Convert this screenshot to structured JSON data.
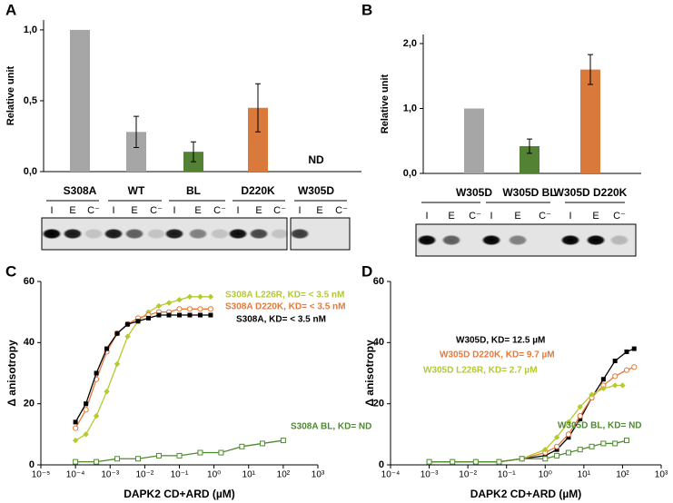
{
  "chart_data": [
    {
      "type": "bar",
      "panel": "A",
      "y_label": "Relative unit",
      "categories": [
        "S308A",
        "WT",
        "BL",
        "D220K",
        "W305D"
      ],
      "values": [
        1.0,
        0.28,
        0.14,
        0.45,
        null
      ],
      "errors": [
        0,
        0.11,
        0.07,
        0.17,
        null
      ],
      "colors": [
        "#a6a6a6",
        "#a6a6a6",
        "#548235",
        "#d9793b",
        "#a6a6a6"
      ],
      "annotation": "ND",
      "ylim": [
        0,
        1.07
      ],
      "yticks": [
        {
          "value": 0,
          "label": "0,0"
        },
        {
          "value": 0.5,
          "label": "0,5"
        },
        {
          "value": 1,
          "label": "1,0"
        }
      ]
    },
    {
      "type": "bar",
      "panel": "B",
      "y_label": "Relative unit",
      "categories": [
        "W305D",
        "W305D BL",
        "W305D D220K"
      ],
      "values": [
        1.0,
        0.42,
        1.6
      ],
      "errors": [
        0,
        0.11,
        0.23
      ],
      "colors": [
        "#a6a6a6",
        "#548235",
        "#d9793b"
      ],
      "ylim": [
        0,
        2.14
      ],
      "yticks": [
        {
          "value": 0,
          "label": "0,0"
        },
        {
          "value": 1,
          "label": "1,0"
        },
        {
          "value": 2,
          "label": "2,0"
        }
      ]
    },
    {
      "type": "scatter",
      "panel": "C",
      "x_label": "DAPK2 CD+ARD (µM)",
      "y_label": "Δ anisotropy",
      "log_x": true,
      "xlim": [
        1e-05,
        1000
      ],
      "xticks": [
        {
          "value": 1e-05,
          "label": "10⁻⁵"
        },
        {
          "value": 0.0001,
          "label": "10⁻⁴"
        },
        {
          "value": 0.001,
          "label": "10⁻³"
        },
        {
          "value": 0.01,
          "label": "10⁻²"
        },
        {
          "value": 0.1,
          "label": "10⁻¹"
        },
        {
          "value": 1,
          "label": "10⁰"
        },
        {
          "value": 10,
          "label": "10¹"
        },
        {
          "value": 100,
          "label": "10²"
        },
        {
          "value": 1000,
          "label": "10³"
        }
      ],
      "ylim": [
        0,
        60
      ],
      "yticks": [
        0,
        20,
        40,
        60
      ],
      "series": [
        {
          "name": "S308A L226R, KD= < 3.5 nM",
          "color": "#b5c930",
          "marker": "diamond",
          "x": [
            0.0001,
            0.0002,
            0.0004,
            0.0008,
            0.0016,
            0.0032,
            0.0064,
            0.0128,
            0.0256,
            0.05,
            0.1,
            0.2,
            0.4,
            0.8
          ],
          "values": [
            8,
            10,
            16,
            24,
            33,
            42,
            47,
            50,
            52,
            53,
            54,
            55,
            55,
            55
          ]
        },
        {
          "name": "S308A D220K, KD= < 3.5 nM",
          "color": "#e8783a",
          "marker": "circle-open",
          "x": [
            0.0001,
            0.0002,
            0.0004,
            0.0008,
            0.0016,
            0.0032,
            0.0064,
            0.0128,
            0.0256,
            0.05,
            0.1,
            0.2,
            0.4,
            0.8
          ],
          "values": [
            12,
            18,
            28,
            37,
            43,
            46,
            48,
            49,
            50,
            50,
            51,
            51,
            51,
            51
          ]
        },
        {
          "name": "S308A, KD= < 3.5 nM",
          "color": "#000000",
          "marker": "square",
          "x": [
            0.0001,
            0.0002,
            0.0004,
            0.0008,
            0.0016,
            0.0032,
            0.0064,
            0.0128,
            0.0256,
            0.05,
            0.1,
            0.2,
            0.4,
            0.8
          ],
          "values": [
            14,
            20,
            30,
            38,
            43,
            46,
            47,
            48,
            49,
            49,
            49,
            49,
            49,
            49
          ]
        },
        {
          "name": "S308A BL, KD= ND",
          "color": "#4e8a2e",
          "marker": "square-open",
          "x": [
            0.0001,
            0.0004,
            0.0016,
            0.0064,
            0.0256,
            0.1,
            0.4,
            1.6,
            6.4,
            25,
            100
          ],
          "values": [
            1,
            1,
            2,
            2,
            3,
            3,
            4,
            4,
            6,
            7,
            8
          ]
        }
      ]
    },
    {
      "type": "scatter",
      "panel": "D",
      "x_label": "DAPK2 CD+ARD (µM)",
      "y_label": "Δ anisotropy",
      "log_x": true,
      "xlim": [
        0.0001,
        1000
      ],
      "xticks": [
        {
          "value": 0.0001,
          "label": "10⁻⁴"
        },
        {
          "value": 0.001,
          "label": "10⁻³"
        },
        {
          "value": 0.01,
          "label": "10⁻²"
        },
        {
          "value": 0.1,
          "label": "10⁻¹"
        },
        {
          "value": 1,
          "label": "10⁰"
        },
        {
          "value": 10,
          "label": "10¹"
        },
        {
          "value": 100,
          "label": "10²"
        },
        {
          "value": 1000,
          "label": "10³"
        }
      ],
      "ylim": [
        0,
        60
      ],
      "yticks": [
        0,
        20,
        40,
        60
      ],
      "series": [
        {
          "name": "W305D, KD= 12.5 µM",
          "color": "#000000",
          "marker": "square",
          "x": [
            0.001,
            0.004,
            0.016,
            0.064,
            0.25,
            1,
            2,
            4,
            8,
            16,
            32,
            64,
            128,
            200
          ],
          "values": [
            1,
            1,
            1,
            1,
            2,
            3,
            5,
            9,
            15,
            22,
            28,
            34,
            37,
            38
          ]
        },
        {
          "name": "W305D D220K, KD= 9.7 µM",
          "color": "#e8783a",
          "marker": "circle-open",
          "x": [
            0.001,
            0.004,
            0.016,
            0.064,
            0.25,
            1,
            2,
            4,
            8,
            16,
            32,
            64,
            128,
            200
          ],
          "values": [
            1,
            1,
            1,
            1,
            2,
            4,
            6,
            10,
            16,
            22,
            26,
            29,
            31,
            32
          ]
        },
        {
          "name": "W305D L226R, KD= 2.7 µM",
          "color": "#b5c930",
          "marker": "diamond",
          "x": [
            0.001,
            0.004,
            0.016,
            0.064,
            0.25,
            1,
            2,
            4,
            8,
            16,
            32,
            64,
            100
          ],
          "values": [
            1,
            1,
            1,
            1,
            2,
            5,
            9,
            14,
            19,
            23,
            25,
            26,
            26
          ]
        },
        {
          "name": "W305D BL, KD= ND",
          "color": "#4e8a2e",
          "marker": "square-open",
          "x": [
            0.001,
            0.004,
            0.016,
            0.064,
            0.25,
            1,
            2,
            4,
            8,
            16,
            32,
            64,
            128
          ],
          "values": [
            1,
            1,
            1,
            1,
            2,
            2,
            3,
            4,
            5,
            6,
            7,
            7,
            8
          ]
        }
      ]
    }
  ],
  "gels": {
    "lanes": [
      "I",
      "E",
      "C⁻"
    ]
  }
}
